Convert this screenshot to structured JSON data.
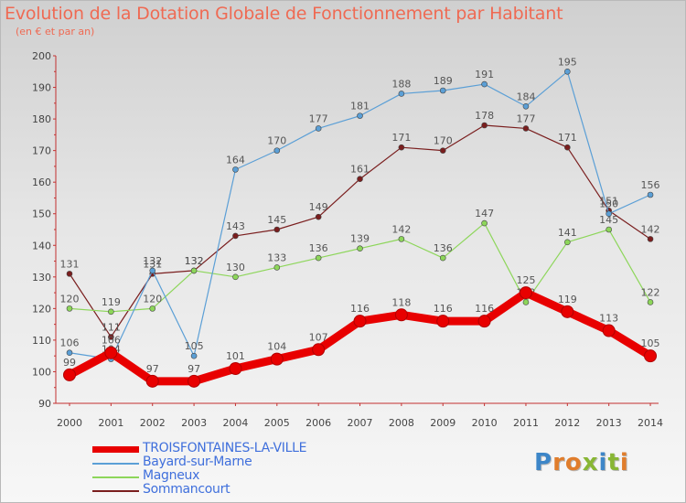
{
  "title": "Evolution de la Dotation Globale de Fonctionnement par Habitant",
  "subtitle": "(en € et par an)",
  "brand": {
    "text": "Proxiti",
    "letters": [
      "P",
      "r",
      "o",
      "x",
      "i",
      "t",
      "i"
    ],
    "colors": [
      "#3d86c8",
      "#e07d2c",
      "#e07d2c",
      "#88b634",
      "#3d86c8",
      "#88b634",
      "#e07d2c"
    ]
  },
  "chart_data": {
    "type": "line",
    "title": "Evolution de la Dotation Globale de Fonctionnement par Habitant",
    "subtitle": "(en € et par an)",
    "x": [
      "2000",
      "2001",
      "2002",
      "2003",
      "2004",
      "2005",
      "2006",
      "2007",
      "2008",
      "2009",
      "2010",
      "2011",
      "2012",
      "2013",
      "2014"
    ],
    "ylim": [
      90,
      200
    ],
    "yticks": [
      90,
      100,
      110,
      120,
      130,
      140,
      150,
      160,
      170,
      180,
      190,
      200
    ],
    "grid": false,
    "legend_position": "bottom-left",
    "series": [
      {
        "name": "TROISFONTAINES-LA-VILLE",
        "color": "#e80000",
        "highlight": true,
        "values": [
          99,
          106,
          97,
          97,
          101,
          104,
          107,
          116,
          118,
          116,
          116,
          125,
          119,
          113,
          105
        ]
      },
      {
        "name": "Bayard-sur-Marne",
        "color": "#5b9fd6",
        "values": [
          106,
          104,
          132,
          105,
          164,
          170,
          177,
          181,
          188,
          189,
          191,
          184,
          195,
          150,
          156
        ]
      },
      {
        "name": "Magneux",
        "color": "#8dd65a",
        "values": [
          120,
          119,
          120,
          132,
          130,
          133,
          136,
          139,
          142,
          136,
          147,
          122,
          141,
          145,
          122
        ]
      },
      {
        "name": "Sommancourt",
        "color": "#7a1e1e",
        "values": [
          131,
          111,
          131,
          132,
          143,
          145,
          149,
          161,
          171,
          170,
          178,
          177,
          171,
          151,
          142
        ]
      }
    ]
  }
}
